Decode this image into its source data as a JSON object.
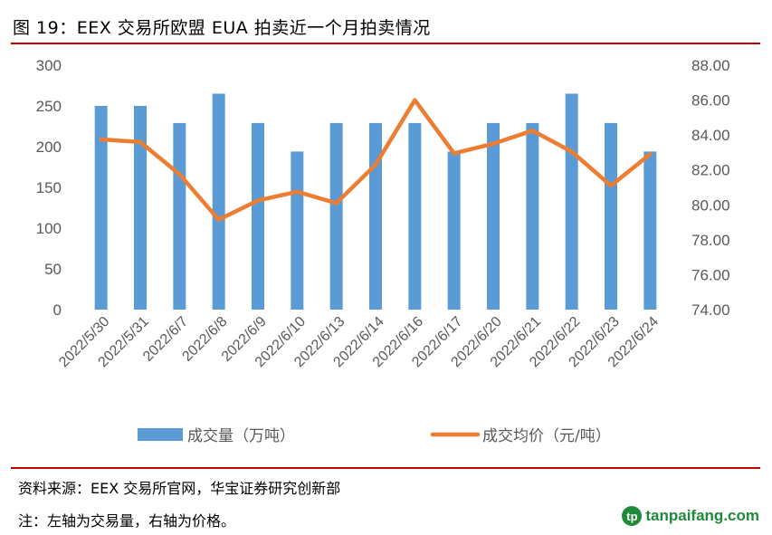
{
  "title": "图 19：EEX 交易所欧盟 EUA 拍卖近一个月拍卖情况",
  "source": "资料来源：EEX 交易所官网，华宝证券研究创新部",
  "note": "注：左轴为交易量，右轴为价格。",
  "logo": {
    "text": "tanpaifang.com",
    "mark": "tp"
  },
  "colors": {
    "bar": "#5b9bd5",
    "line": "#ed7d31",
    "rule": "#c00000",
    "axis_text": "#595959"
  },
  "chart_data": {
    "type": "bar+line",
    "categories": [
      "2022/5/30",
      "2022/5/31",
      "2022/6/7",
      "2022/6/8",
      "2022/6/9",
      "2022/6/10",
      "2022/6/13",
      "2022/6/14",
      "2022/6/16",
      "2022/6/17",
      "2022/6/20",
      "2022/6/21",
      "2022/6/22",
      "2022/6/23",
      "2022/6/24"
    ],
    "series": [
      {
        "name": "成交量（万吨）",
        "type": "bar",
        "axis": "left",
        "values": [
          250,
          250,
          229,
          265,
          229,
          194,
          229,
          229,
          229,
          194,
          229,
          229,
          265,
          229,
          194
        ]
      },
      {
        "name": "成交均价（元/吨）",
        "type": "line",
        "axis": "right",
        "values": [
          83.75,
          83.6,
          81.75,
          79.15,
          80.25,
          80.75,
          80.1,
          82.3,
          86.0,
          82.95,
          83.5,
          84.25,
          83.05,
          81.1,
          82.9
        ]
      }
    ],
    "left_axis": {
      "min": 0,
      "max": 300,
      "ticks": [
        "0",
        "50",
        "100",
        "150",
        "200",
        "250",
        "300"
      ]
    },
    "right_axis": {
      "min": 74,
      "max": 88,
      "ticks": [
        "74.00",
        "76.00",
        "78.00",
        "80.00",
        "82.00",
        "84.00",
        "86.00",
        "88.00"
      ]
    },
    "legend_position": "bottom"
  }
}
